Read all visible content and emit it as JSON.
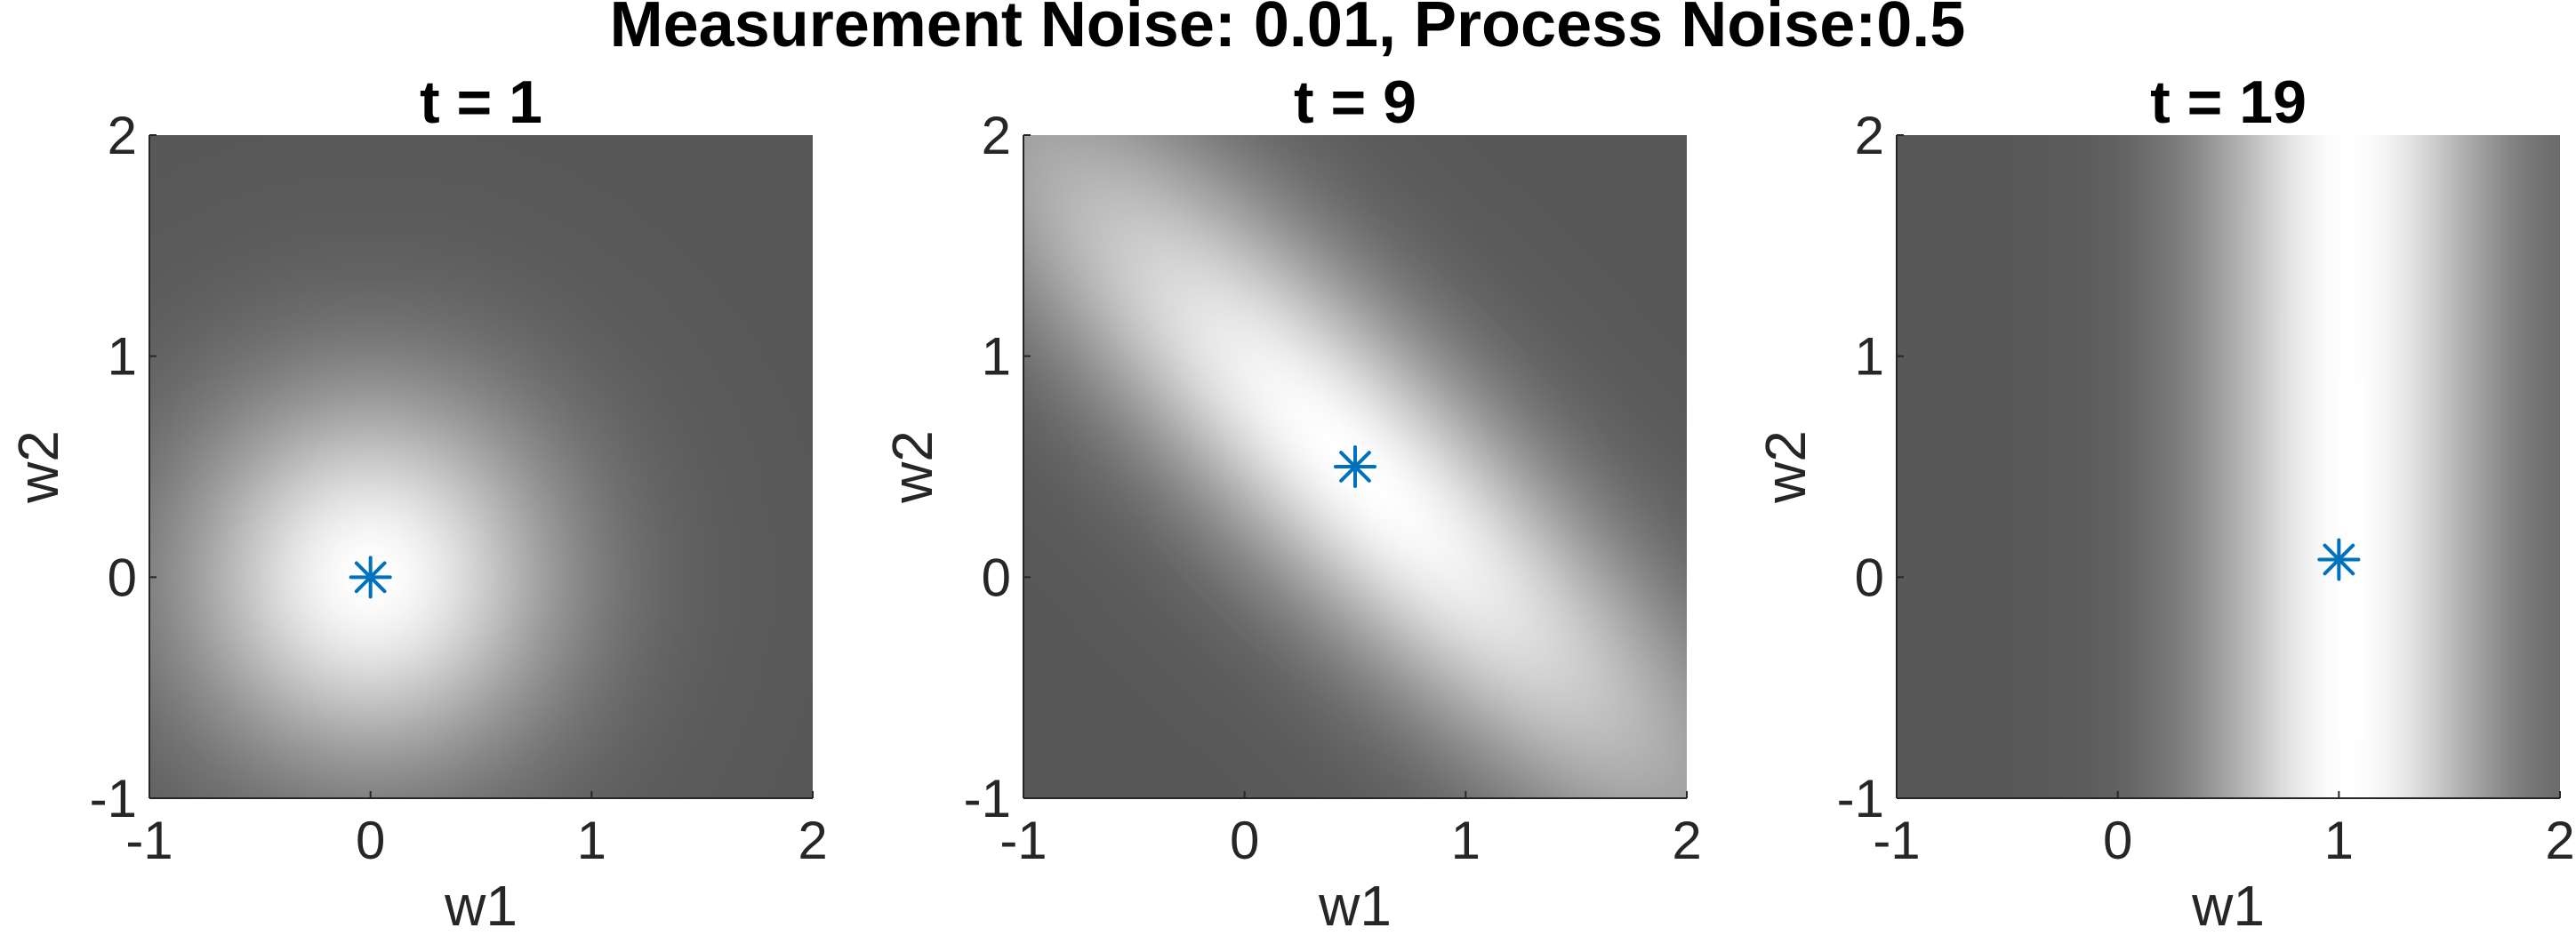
{
  "figure": {
    "suptitle": "Measurement Noise: 0.01, Process Noise:0.5"
  },
  "chart_data": [
    {
      "type": "heatmap",
      "title": "t = 1",
      "xlabel": "w1",
      "ylabel": "w2",
      "xlim": [
        -1,
        2
      ],
      "ylim": [
        -1,
        2
      ],
      "xticks": [
        -1,
        0,
        1,
        2
      ],
      "yticks": [
        -1,
        0,
        1,
        2
      ],
      "x_tick_labels": [
        "-1",
        "0",
        "1",
        "2"
      ],
      "y_tick_labels": [
        "-1",
        "0",
        "1",
        "2"
      ],
      "colormap": "gray",
      "density": {
        "mean": [
          0,
          0
        ],
        "sd": [
          0.6,
          0.6
        ],
        "rho": 0
      },
      "marker": {
        "x": 0.0,
        "y": 0.0,
        "symbol": "asterisk",
        "color": "#0072BD"
      }
    },
    {
      "type": "heatmap",
      "title": "t = 9",
      "xlabel": "w1",
      "ylabel": "w2",
      "xlim": [
        -1,
        2
      ],
      "ylim": [
        -1,
        2
      ],
      "xticks": [
        -1,
        0,
        1,
        2
      ],
      "yticks": [
        -1,
        0,
        1,
        2
      ],
      "x_tick_labels": [
        "-1",
        "0",
        "1",
        "2"
      ],
      "y_tick_labels": [
        "-1",
        "0",
        "1",
        "2"
      ],
      "colormap": "gray",
      "density": {
        "mean": [
          0.5,
          0.5
        ],
        "sd": [
          1.2,
          1.2
        ],
        "rho": -0.88
      },
      "marker": {
        "x": 0.5,
        "y": 0.5,
        "symbol": "asterisk",
        "color": "#0072BD"
      }
    },
    {
      "type": "heatmap",
      "title": "t = 19",
      "xlabel": "w1",
      "ylabel": "w2",
      "xlim": [
        -1,
        2
      ],
      "ylim": [
        -1,
        2
      ],
      "xticks": [
        -1,
        0,
        1,
        2
      ],
      "yticks": [
        -1,
        0,
        1,
        2
      ],
      "x_tick_labels": [
        "-1",
        "0",
        "1",
        "2"
      ],
      "y_tick_labels": [
        "-1",
        "0",
        "1",
        "2"
      ],
      "colormap": "gray",
      "density": {
        "mean": [
          1.05,
          0.08
        ],
        "sd": [
          0.45,
          50
        ],
        "rho": 0
      },
      "marker": {
        "x": 1.0,
        "y": 0.08,
        "symbol": "asterisk",
        "color": "#0072BD"
      }
    }
  ]
}
